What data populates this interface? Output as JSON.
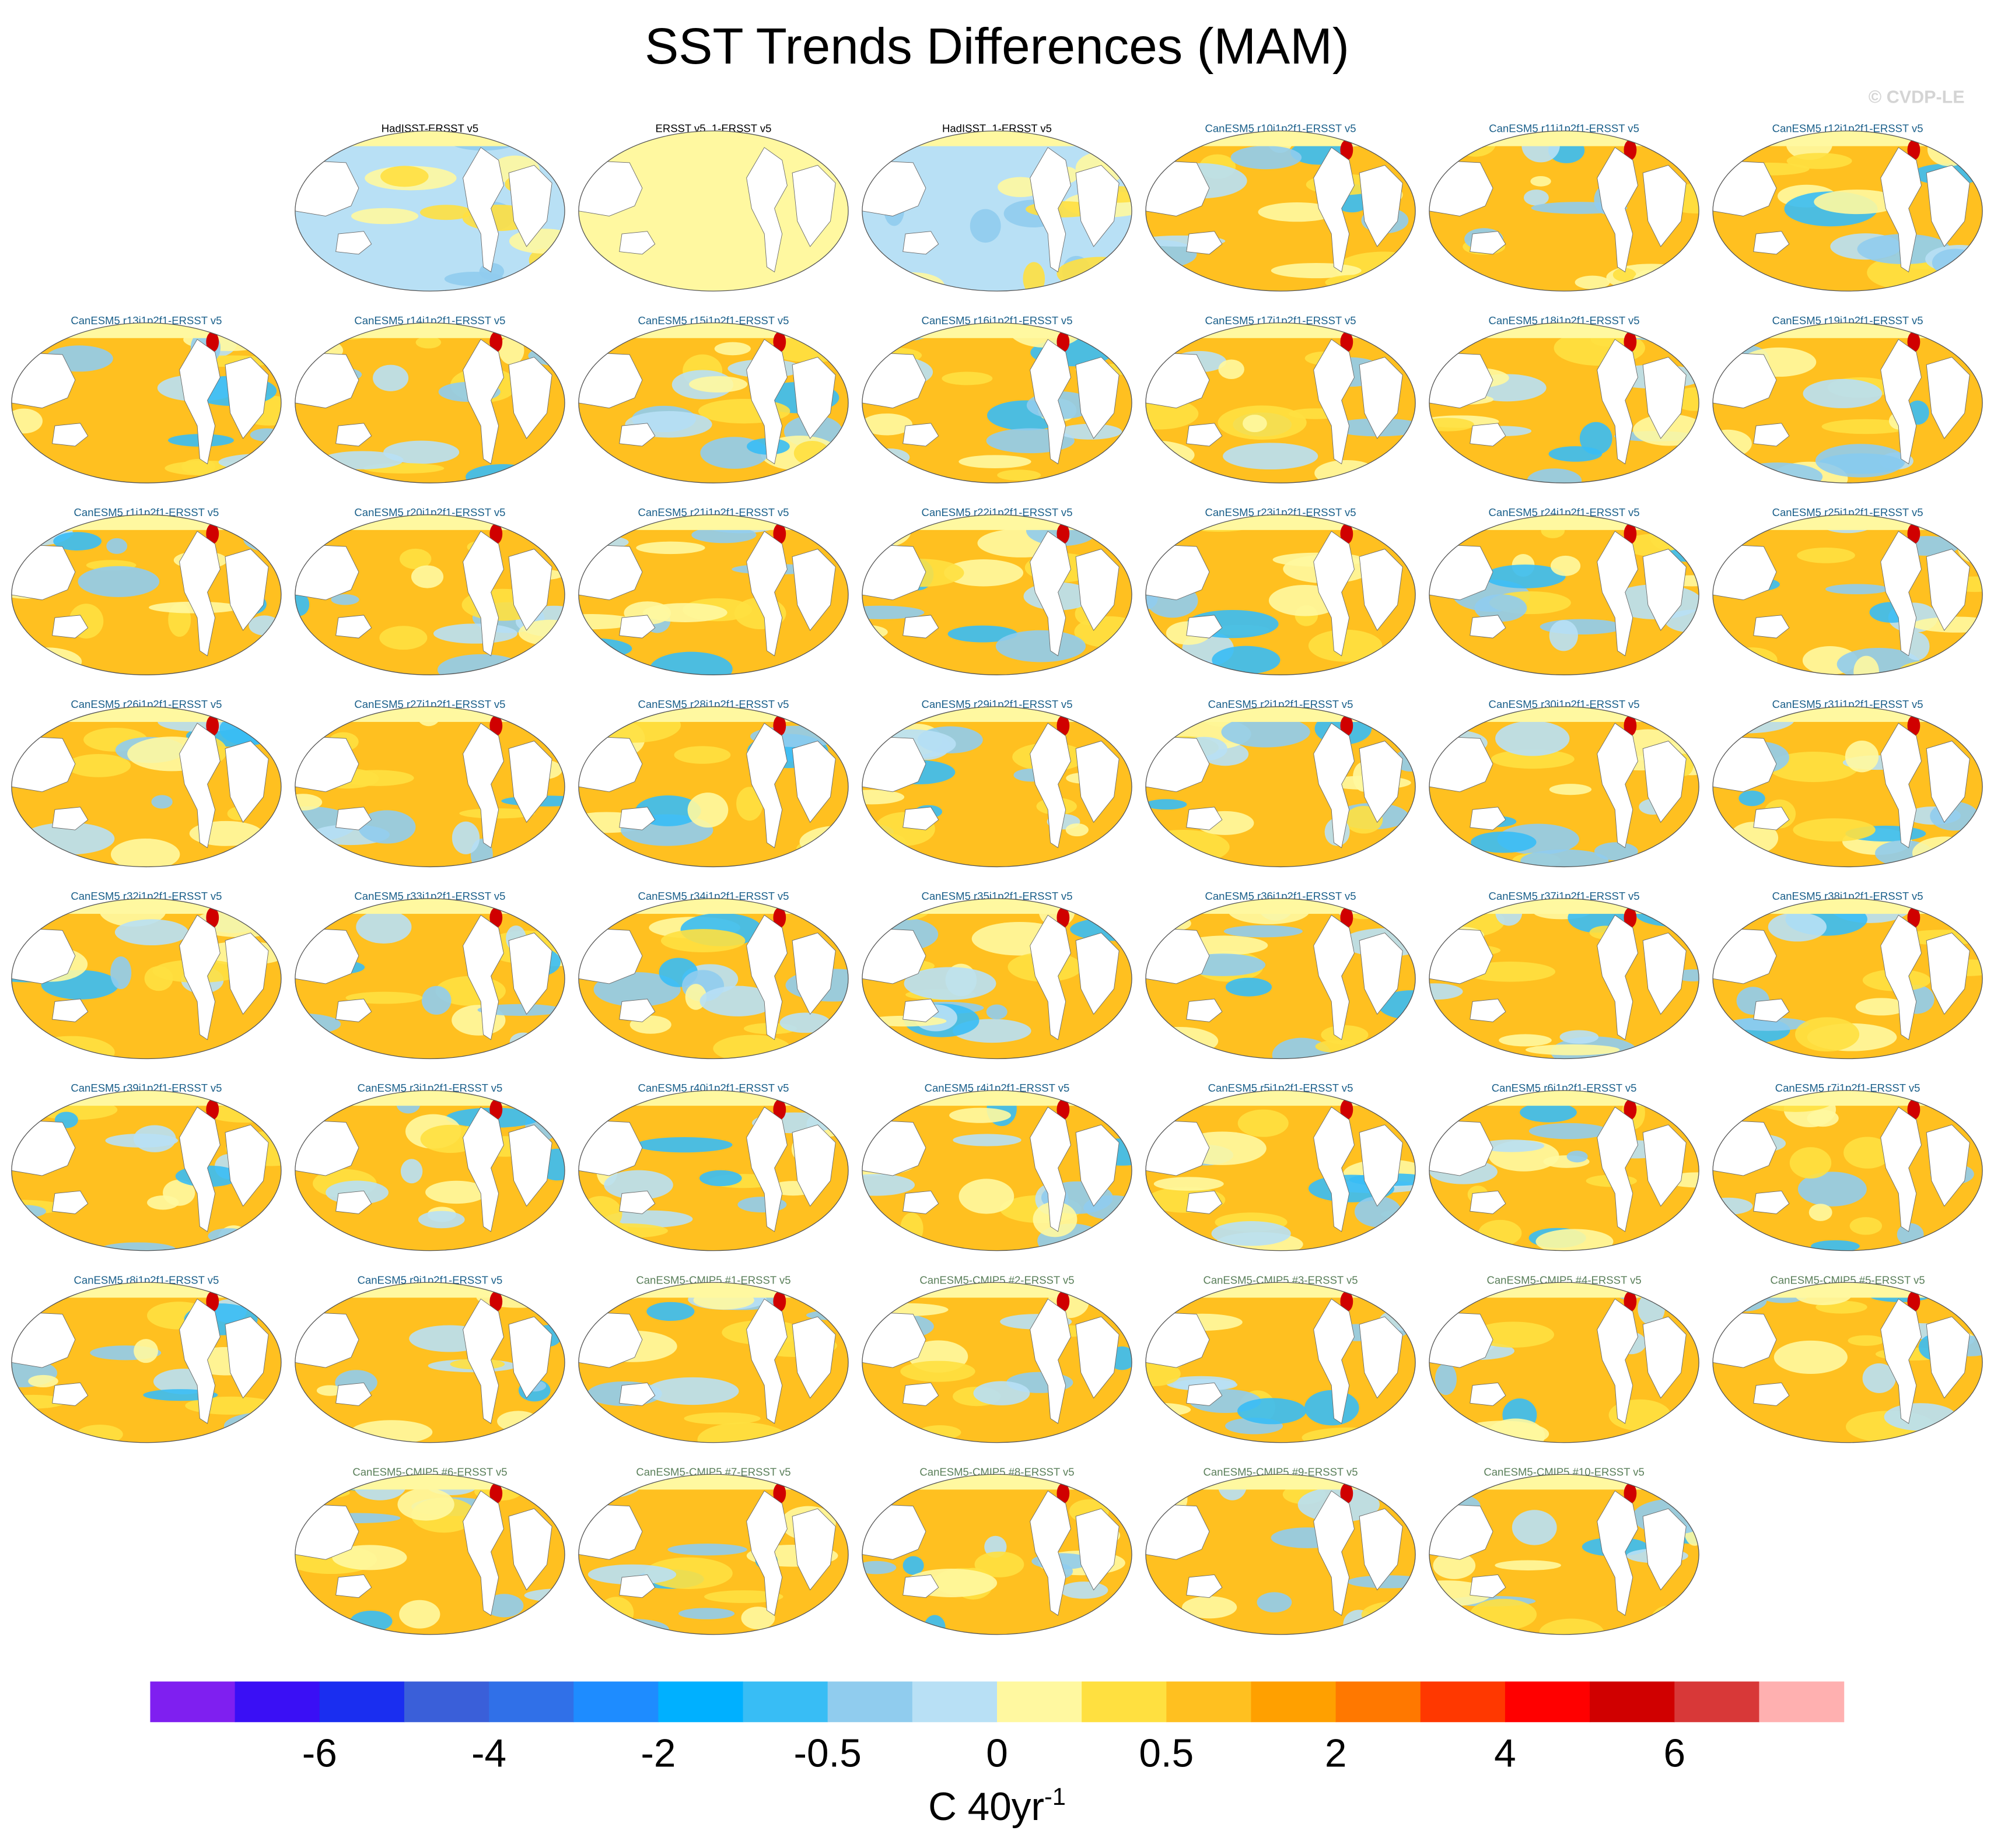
{
  "title": "SST Trends Differences (MAM)",
  "watermark": "© CVDP-LE",
  "panels": [
    {
      "title": "HadISST-ERSST v5",
      "color": "#000000"
    },
    {
      "title": "ERSST v5_1-ERSST v5",
      "color": "#000000"
    },
    {
      "title": "HadISST_1-ERSST v5",
      "color": "#000000"
    },
    {
      "title": "CanESM5 r10i1p2f1-ERSST v5",
      "color": "#1a5f8a"
    },
    {
      "title": "CanESM5 r11i1p2f1-ERSST v5",
      "color": "#1a5f8a"
    },
    {
      "title": "CanESM5 r12i1p2f1-ERSST v5",
      "color": "#1a5f8a"
    },
    {
      "title": "CanESM5 r13i1p2f1-ERSST v5",
      "color": "#1a5f8a"
    },
    {
      "title": "CanESM5 r14i1p2f1-ERSST v5",
      "color": "#1a5f8a"
    },
    {
      "title": "CanESM5 r15i1p2f1-ERSST v5",
      "color": "#1a5f8a"
    },
    {
      "title": "CanESM5 r16i1p2f1-ERSST v5",
      "color": "#1a5f8a"
    },
    {
      "title": "CanESM5 r17i1p2f1-ERSST v5",
      "color": "#1a5f8a"
    },
    {
      "title": "CanESM5 r18i1p2f1-ERSST v5",
      "color": "#1a5f8a"
    },
    {
      "title": "CanESM5 r19i1p2f1-ERSST v5",
      "color": "#1a5f8a"
    },
    {
      "title": "CanESM5 r1i1p2f1-ERSST v5",
      "color": "#1a5f8a"
    },
    {
      "title": "CanESM5 r20i1p2f1-ERSST v5",
      "color": "#1a5f8a"
    },
    {
      "title": "CanESM5 r21i1p2f1-ERSST v5",
      "color": "#1a5f8a"
    },
    {
      "title": "CanESM5 r22i1p2f1-ERSST v5",
      "color": "#1a5f8a"
    },
    {
      "title": "CanESM5 r23i1p2f1-ERSST v5",
      "color": "#1a5f8a"
    },
    {
      "title": "CanESM5 r24i1p2f1-ERSST v5",
      "color": "#1a5f8a"
    },
    {
      "title": "CanESM5 r25i1p2f1-ERSST v5",
      "color": "#1a5f8a"
    },
    {
      "title": "CanESM5 r26i1p2f1-ERSST v5",
      "color": "#1a5f8a"
    },
    {
      "title": "CanESM5 r27i1p2f1-ERSST v5",
      "color": "#1a5f8a"
    },
    {
      "title": "CanESM5 r28i1p2f1-ERSST v5",
      "color": "#1a5f8a"
    },
    {
      "title": "CanESM5 r29i1p2f1-ERSST v5",
      "color": "#1a5f8a"
    },
    {
      "title": "CanESM5 r2i1p2f1-ERSST v5",
      "color": "#1a5f8a"
    },
    {
      "title": "CanESM5 r30i1p2f1-ERSST v5",
      "color": "#1a5f8a"
    },
    {
      "title": "CanESM5 r31i1p2f1-ERSST v5",
      "color": "#1a5f8a"
    },
    {
      "title": "CanESM5 r32i1p2f1-ERSST v5",
      "color": "#1a5f8a"
    },
    {
      "title": "CanESM5 r33i1p2f1-ERSST v5",
      "color": "#1a5f8a"
    },
    {
      "title": "CanESM5 r34i1p2f1-ERSST v5",
      "color": "#1a5f8a"
    },
    {
      "title": "CanESM5 r35i1p2f1-ERSST v5",
      "color": "#1a5f8a"
    },
    {
      "title": "CanESM5 r36i1p2f1-ERSST v5",
      "color": "#1a5f8a"
    },
    {
      "title": "CanESM5 r37i1p2f1-ERSST v5",
      "color": "#1a5f8a"
    },
    {
      "title": "CanESM5 r38i1p2f1-ERSST v5",
      "color": "#1a5f8a"
    },
    {
      "title": "CanESM5 r39i1p2f1-ERSST v5",
      "color": "#1a5f8a"
    },
    {
      "title": "CanESM5 r3i1p2f1-ERSST v5",
      "color": "#1a5f8a"
    },
    {
      "title": "CanESM5 r40i1p2f1-ERSST v5",
      "color": "#1a5f8a"
    },
    {
      "title": "CanESM5 r4i1p2f1-ERSST v5",
      "color": "#1a5f8a"
    },
    {
      "title": "CanESM5 r5i1p2f1-ERSST v5",
      "color": "#1a5f8a"
    },
    {
      "title": "CanESM5 r6i1p2f1-ERSST v5",
      "color": "#1a5f8a"
    },
    {
      "title": "CanESM5 r7i1p2f1-ERSST v5",
      "color": "#1a5f8a"
    },
    {
      "title": "CanESM5 r8i1p2f1-ERSST v5",
      "color": "#1a5f8a"
    },
    {
      "title": "CanESM5 r9i1p2f1-ERSST v5",
      "color": "#1a5f8a"
    },
    {
      "title": "CanESM5-CMIP5 #1-ERSST v5",
      "color": "#5a7f5a"
    },
    {
      "title": "CanESM5-CMIP5 #2-ERSST v5",
      "color": "#5a7f5a"
    },
    {
      "title": "CanESM5-CMIP5 #3-ERSST v5",
      "color": "#5a7f5a"
    },
    {
      "title": "CanESM5-CMIP5 #4-ERSST v5",
      "color": "#5a7f5a"
    },
    {
      "title": "CanESM5-CMIP5 #5-ERSST v5",
      "color": "#5a7f5a"
    },
    {
      "title": "CanESM5-CMIP5 #6-ERSST v5",
      "color": "#5a7f5a"
    },
    {
      "title": "CanESM5-CMIP5 #7-ERSST v5",
      "color": "#5a7f5a"
    },
    {
      "title": "CanESM5-CMIP5 #8-ERSST v5",
      "color": "#5a7f5a"
    },
    {
      "title": "CanESM5-CMIP5 #9-ERSST v5",
      "color": "#5a7f5a"
    },
    {
      "title": "CanESM5-CMIP5 #10-ERSST v5",
      "color": "#5a7f5a"
    }
  ],
  "colorbar": {
    "colors": [
      "#7f1ff0",
      "#3a0ff5",
      "#1a2ef0",
      "#3a5fd9",
      "#3070e8",
      "#1e8cff",
      "#00b0ff",
      "#38bdf5",
      "#90ccee",
      "#b8e0f5",
      "#fff8a0",
      "#ffe040",
      "#ffc020",
      "#ffa000",
      "#ff7800",
      "#ff3800",
      "#ff0000",
      "#d00000",
      "#d83838",
      "#ffb0b0"
    ],
    "ticks": [
      -6,
      -4,
      -2,
      -0.5,
      0,
      0.5,
      2,
      4,
      6
    ],
    "units": "C 40yr",
    "units_superscript": "-1"
  }
}
